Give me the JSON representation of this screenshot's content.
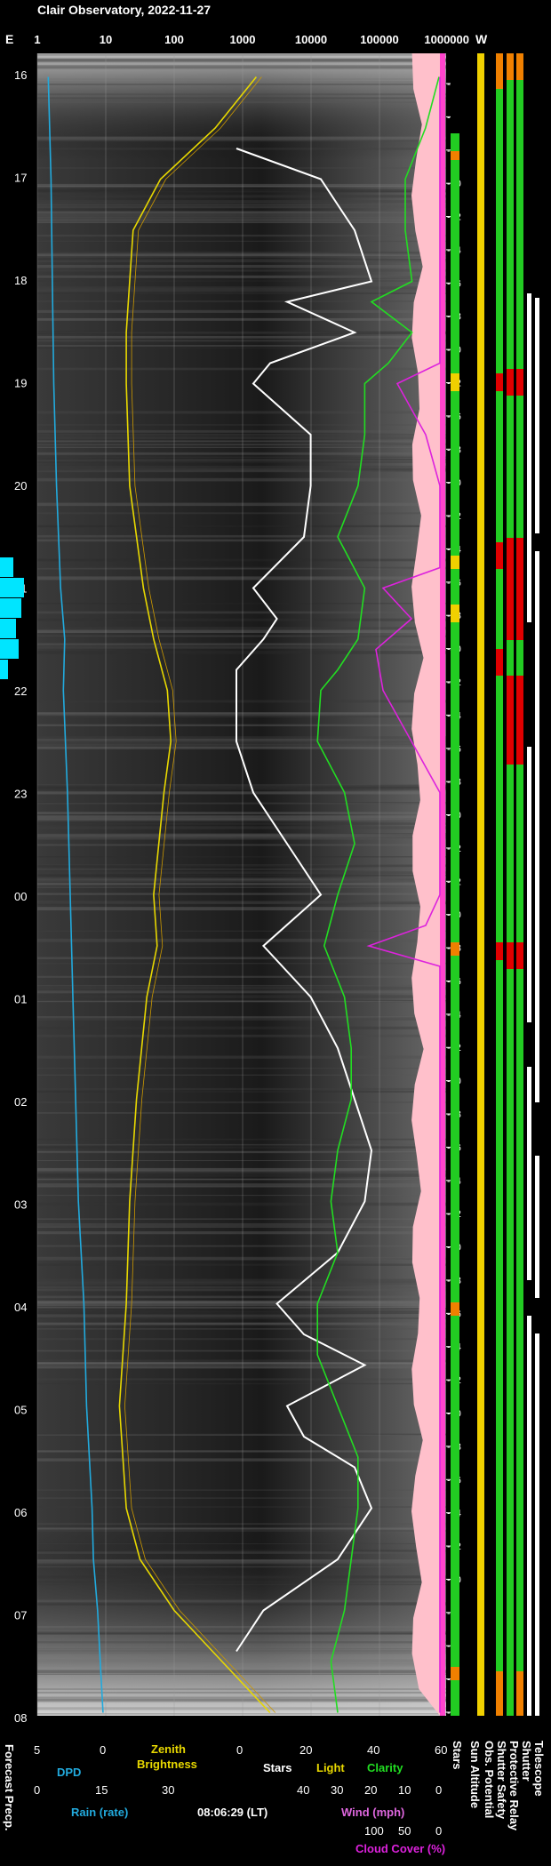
{
  "title": "Clair Observatory, 2022-11-27",
  "corner_labels": {
    "left": "E",
    "right": "W"
  },
  "chart_data": {
    "type": "line",
    "top_axis_ticks": [
      "1",
      "10",
      "100",
      "1000",
      "10000",
      "100000",
      "1000000"
    ],
    "hour_ticks": [
      "16",
      "17",
      "18",
      "19",
      "20",
      "21",
      "22",
      "23",
      "00",
      "01",
      "02",
      "03",
      "04",
      "05",
      "06",
      "07",
      "08"
    ],
    "sun_altitude_ticks": [
      "-4",
      "-6",
      "-8",
      "-10",
      "-12",
      "-14",
      "-16",
      "-18",
      "-20",
      "-22",
      "-26",
      "-28",
      "-30",
      "-32",
      "-34",
      "-36",
      "-38",
      "-40",
      "-42",
      "-44",
      "-46",
      "-48",
      "-50",
      "-52",
      "-52",
      "-50",
      "-48",
      "-46",
      "-44",
      "-42",
      "-40",
      "-38",
      "-36",
      "-34",
      "-32",
      "-30",
      "-28",
      "-26",
      "-24",
      "-22",
      "-20",
      "-18",
      "-16",
      "-14",
      "-12",
      "-10",
      "-8",
      "-6",
      "-4",
      "-2"
    ],
    "bottom_scales": {
      "dpd": {
        "label": "DPD",
        "ticks": [
          "5",
          "0"
        ]
      },
      "rain": {
        "label": "Rain (rate)",
        "ticks": [
          "0",
          "15",
          "30"
        ]
      },
      "zenith": {
        "label": "Zenith\nBrightness"
      },
      "stars_light_clarity": {
        "labels": [
          "Stars",
          "Light",
          "Clarity"
        ],
        "ticks": [
          "0",
          "20",
          "40",
          "60"
        ]
      },
      "wind": {
        "label": "Wind (mph)",
        "ticks": [
          "40",
          "30",
          "20",
          "10",
          "0"
        ]
      },
      "cloud": {
        "label": "Cloud Cover (%)",
        "ticks": [
          "100",
          "50",
          "0"
        ]
      }
    },
    "timestamp": "08:06:29 (LT)",
    "status_columns": [
      "Stars",
      "Sun Altitude",
      "Obs. Potential",
      "Shutter Safety",
      "Protective Relay",
      "Shutter",
      "Telescope"
    ],
    "left_label": "Forecast Precp.",
    "series": [
      {
        "name": "Zenith Brightness",
        "color": "#e8d800",
        "values": [
          [
            "16.0",
            3.2
          ],
          [
            "16.5",
            2.6
          ],
          [
            "17.0",
            1.8
          ],
          [
            "17.5",
            1.4
          ],
          [
            "18.0",
            1.35
          ],
          [
            "18.5",
            1.3
          ],
          [
            "19.0",
            1.3
          ],
          [
            "20.0",
            1.35
          ],
          [
            "21.0",
            1.55
          ],
          [
            "21.5",
            1.7
          ],
          [
            "22.0",
            1.9
          ],
          [
            "22.5",
            1.95
          ],
          [
            "23.0",
            1.85
          ],
          [
            "00.0",
            1.7
          ],
          [
            "00.5",
            1.75
          ],
          [
            "01.0",
            1.6
          ],
          [
            "02.0",
            1.45
          ],
          [
            "03.0",
            1.35
          ],
          [
            "04.0",
            1.3
          ],
          [
            "05.0",
            1.2
          ],
          [
            "06.0",
            1.3
          ],
          [
            "06.5",
            1.5
          ],
          [
            "07.0",
            2.0
          ],
          [
            "07.5",
            2.7
          ],
          [
            "08.0",
            3.4
          ]
        ]
      },
      {
        "name": "Stars",
        "color": "#ffffff",
        "values": [
          [
            "16.7",
            0
          ],
          [
            "17.0",
            25
          ],
          [
            "17.5",
            35
          ],
          [
            "18.0",
            40
          ],
          [
            "18.2",
            15
          ],
          [
            "18.5",
            35
          ],
          [
            "18.8",
            10
          ],
          [
            "19.0",
            5
          ],
          [
            "19.5",
            22
          ],
          [
            "20.0",
            22
          ],
          [
            "20.5",
            20
          ],
          [
            "21.0",
            5
          ],
          [
            "21.3",
            12
          ],
          [
            "21.5",
            8
          ],
          [
            "21.8",
            0
          ],
          [
            "22.5",
            0
          ],
          [
            "23.0",
            5
          ],
          [
            "23.5",
            15
          ],
          [
            "00.0",
            25
          ],
          [
            "00.5",
            8
          ],
          [
            "01.0",
            22
          ],
          [
            "01.5",
            30
          ],
          [
            "02.0",
            35
          ],
          [
            "02.5",
            40
          ],
          [
            "03.0",
            38
          ],
          [
            "03.5",
            30
          ],
          [
            "04.0",
            12
          ],
          [
            "04.3",
            20
          ],
          [
            "04.6",
            38
          ],
          [
            "05.0",
            15
          ],
          [
            "05.3",
            20
          ],
          [
            "05.6",
            35
          ],
          [
            "06.0",
            40
          ],
          [
            "06.5",
            30
          ],
          [
            "07.0",
            8
          ],
          [
            "07.4",
            0
          ]
        ]
      },
      {
        "name": "Clarity",
        "color": "#22dd22",
        "values": [
          [
            "16.0",
            60
          ],
          [
            "16.5",
            56
          ],
          [
            "17.0",
            50
          ],
          [
            "17.5",
            50
          ],
          [
            "18.0",
            52
          ],
          [
            "18.2",
            40
          ],
          [
            "18.5",
            52
          ],
          [
            "18.8",
            45
          ],
          [
            "19.0",
            38
          ],
          [
            "19.5",
            38
          ],
          [
            "20.0",
            36
          ],
          [
            "20.5",
            30
          ],
          [
            "21.0",
            38
          ],
          [
            "21.5",
            36
          ],
          [
            "21.8",
            30
          ],
          [
            "22.0",
            25
          ],
          [
            "22.5",
            24
          ],
          [
            "23.0",
            32
          ],
          [
            "23.5",
            35
          ],
          [
            "00.0",
            30
          ],
          [
            "00.5",
            26
          ],
          [
            "01.0",
            32
          ],
          [
            "01.5",
            34
          ],
          [
            "02.0",
            34
          ],
          [
            "02.5",
            30
          ],
          [
            "03.0",
            28
          ],
          [
            "03.5",
            30
          ],
          [
            "04.0",
            24
          ],
          [
            "04.5",
            24
          ],
          [
            "05.0",
            30
          ],
          [
            "05.5",
            36
          ],
          [
            "06.0",
            36
          ],
          [
            "06.5",
            34
          ],
          [
            "07.0",
            32
          ],
          [
            "07.5",
            28
          ],
          [
            "08.0",
            30
          ]
        ]
      },
      {
        "name": "Cloud Cover",
        "color": "#dd22dd",
        "values": [
          [
            "16.0",
            0
          ],
          [
            "18.8",
            0
          ],
          [
            "19.0",
            30
          ],
          [
            "19.5",
            10
          ],
          [
            "20.0",
            0
          ],
          [
            "20.8",
            0
          ],
          [
            "21.0",
            40
          ],
          [
            "21.3",
            20
          ],
          [
            "21.6",
            45
          ],
          [
            "22.0",
            40
          ],
          [
            "22.5",
            20
          ],
          [
            "23.0",
            0
          ],
          [
            "23.5",
            0
          ],
          [
            "00.0",
            0
          ],
          [
            "00.3",
            10
          ],
          [
            "00.5",
            50
          ],
          [
            "00.7",
            0
          ],
          [
            "05.0",
            0
          ],
          [
            "07.0",
            0
          ],
          [
            "08.0",
            0
          ]
        ]
      },
      {
        "name": "DPD",
        "color": "#22aadd",
        "values": [
          [
            "16.0",
            4.2
          ],
          [
            "17.0",
            4.0
          ],
          [
            "18.0",
            3.9
          ],
          [
            "19.0",
            3.8
          ],
          [
            "20.0",
            3.6
          ],
          [
            "21.0",
            3.3
          ],
          [
            "21.5",
            3.0
          ],
          [
            "22.0",
            3.1
          ],
          [
            "23.0",
            2.8
          ],
          [
            "00.0",
            2.6
          ],
          [
            "01.0",
            2.4
          ],
          [
            "02.0",
            2.2
          ],
          [
            "03.0",
            2.0
          ],
          [
            "04.0",
            1.6
          ],
          [
            "05.0",
            1.4
          ],
          [
            "06.0",
            1.0
          ],
          [
            "06.5",
            0.9
          ],
          [
            "07.0",
            0.6
          ],
          [
            "07.5",
            0.4
          ],
          [
            "08.0",
            0.2
          ]
        ]
      },
      {
        "name": "Forecast Precp.",
        "color": "#00e5ff",
        "values": [
          [
            "20.6",
            0.0
          ],
          [
            "20.7",
            0.5
          ],
          [
            "20.9",
            0.9
          ],
          [
            "21.1",
            0.8
          ],
          [
            "21.3",
            0.6
          ],
          [
            "21.5",
            0.7
          ],
          [
            "21.7",
            0.3
          ],
          [
            "21.8",
            0.0
          ]
        ]
      }
    ]
  }
}
